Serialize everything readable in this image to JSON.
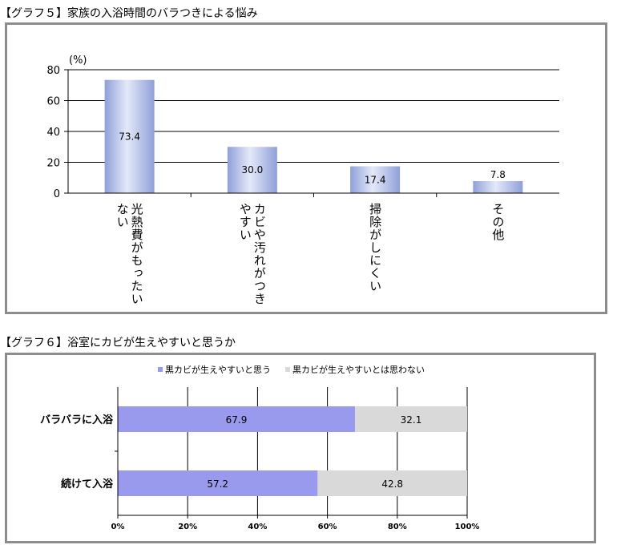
{
  "chart_data": [
    {
      "type": "bar",
      "title": "【グラフ５】家族の入浴時間のバラつきによる悩み",
      "unit_label": "(%)",
      "categories": [
        [
          "光熱費が",
          "もったいない"
        ],
        [
          "カビや汚れが",
          "つきやすい"
        ],
        [
          "掃除がしにくい"
        ],
        [
          "その他"
        ]
      ],
      "values": [
        73.4,
        30.0,
        17.4,
        7.8
      ],
      "value_labels": [
        "73.4",
        "30.0",
        "17.4",
        "7.8"
      ],
      "ylim": [
        0,
        80
      ],
      "yticks": [
        "0",
        "20",
        "40",
        "60",
        "80"
      ],
      "grid": true,
      "bar_color": "#b4c0e8"
    },
    {
      "type": "bar",
      "orientation": "horizontal",
      "stacked": true,
      "title": "【グラフ６】浴室にカビが生えやすいと思うか",
      "categories": [
        "バラバラに入浴",
        "続けて入浴"
      ],
      "series": [
        {
          "name": "黒カビが生えやすいと思う",
          "values": [
            67.9,
            57.2
          ],
          "labels": [
            "67.9",
            "57.2"
          ],
          "color": "#9999ee"
        },
        {
          "name": "黒カビが生えやすいとは思わない",
          "values": [
            32.1,
            42.8
          ],
          "labels": [
            "32.1",
            "42.8"
          ],
          "color": "#d9d9d9"
        }
      ],
      "xlim": [
        0,
        100
      ],
      "xticks": [
        "0%",
        "20%",
        "40%",
        "60%",
        "80%",
        "100%"
      ],
      "legend_position": "top",
      "grid": true
    }
  ]
}
